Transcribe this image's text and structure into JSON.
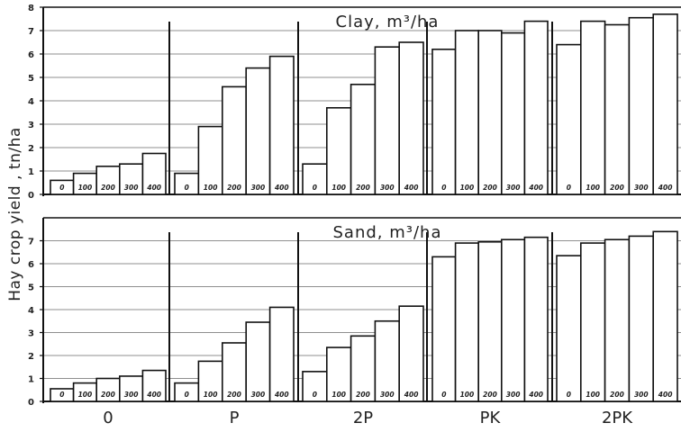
{
  "chart_data": {
    "type": "bar",
    "ylabel": "Hay crop yield , tn/ha",
    "categories": [
      "0",
      "P",
      "2P",
      "PK",
      "2PK"
    ],
    "doses": [
      "0",
      "100",
      "200",
      "300",
      "400"
    ],
    "yticks": [
      "0",
      "1",
      "2",
      "3",
      "4",
      "5",
      "6",
      "7"
    ],
    "panels": [
      {
        "title": "Clay, m³/ha",
        "ylim": [
          0,
          8
        ],
        "yticks_extra": [
          "8"
        ],
        "series": [
          {
            "group": "0",
            "values": [
              0.6,
              0.9,
              1.2,
              1.3,
              1.75
            ],
            "dose_labels": [
              "0",
              "100",
              "200",
              "300",
              "400"
            ]
          },
          {
            "group": "P",
            "values": [
              0.9,
              2.9,
              4.6,
              5.4,
              5.9
            ],
            "dose_labels": [
              "0",
              "100",
              "200",
              "300",
              "400"
            ]
          },
          {
            "group": "2P",
            "values": [
              1.3,
              3.7,
              4.7,
              6.3,
              6.5
            ],
            "dose_labels": [
              "0",
              "100",
              "200",
              "300",
              "400"
            ]
          },
          {
            "group": "PK",
            "values": [
              6.2,
              7.0,
              7.0,
              6.9,
              7.4
            ],
            "dose_labels": [
              "0",
              "100",
              "200",
              "300",
              "400"
            ]
          },
          {
            "group": "2PK",
            "values": [
              6.4,
              7.4,
              7.25,
              7.55,
              7.7
            ],
            "dose_labels": [
              "0",
              "100",
              "200",
              "300",
              "400"
            ]
          }
        ]
      },
      {
        "title": "Sand, m³/ha",
        "ylim": [
          0,
          8
        ],
        "series": [
          {
            "group": "0",
            "values": [
              0.55,
              0.8,
              1.0,
              1.1,
              1.35
            ],
            "dose_labels": [
              "0",
              "100",
              "200",
              "300",
              "400"
            ]
          },
          {
            "group": "P",
            "values": [
              0.8,
              1.75,
              2.55,
              3.45,
              4.1
            ],
            "dose_labels": [
              "0",
              "100",
              "200",
              "300",
              "400"
            ]
          },
          {
            "group": "2P",
            "values": [
              1.3,
              2.35,
              2.85,
              3.5,
              4.15
            ],
            "dose_labels": [
              "0",
              "100",
              "200",
              "300",
              "400"
            ]
          },
          {
            "group": "PK",
            "values": [
              6.3,
              6.9,
              6.95,
              7.05,
              7.15
            ],
            "dose_labels": [
              "0",
              "100",
              "200",
              "300",
              "400"
            ]
          },
          {
            "group": "2PK",
            "values": [
              6.35,
              6.9,
              7.05,
              7.2,
              7.4
            ],
            "dose_labels": [
              "0",
              "100",
              "200",
              "300",
              "400"
            ]
          }
        ]
      }
    ],
    "grid": true
  }
}
